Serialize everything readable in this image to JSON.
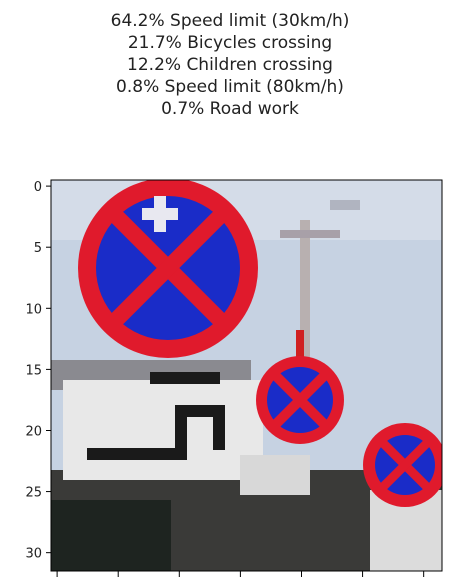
{
  "chart_data": {
    "type": "image",
    "title_lines": [
      "64.2% Speed limit (30km/h)",
      "21.7% Bicycles crossing",
      "12.2% Children crossing",
      "0.8% Speed limit (80km/h)",
      "0.7% Road work"
    ],
    "predictions": [
      {
        "percent": 64.2,
        "label": "Speed limit (30km/h)"
      },
      {
        "percent": 21.7,
        "label": "Bicycles crossing"
      },
      {
        "percent": 12.2,
        "label": "Children crossing"
      },
      {
        "percent": 0.8,
        "label": "Speed limit (80km/h)"
      },
      {
        "percent": 0.7,
        "label": "Road work"
      }
    ],
    "image_size": [
      32,
      32
    ],
    "yticks": [
      0,
      5,
      10,
      15,
      20,
      25,
      30
    ],
    "ytick_labels": [
      "0",
      "5",
      "10",
      "15",
      "20",
      "25",
      "30"
    ],
    "xticks": [
      0,
      5,
      10,
      15,
      20,
      25,
      30
    ],
    "xlim": [
      -0.5,
      31.5
    ],
    "ylim": [
      31.5,
      -0.5
    ],
    "grid": false,
    "colors": {
      "sign_red": "#e01a2c",
      "sign_blue": "#1a2cc8",
      "sky": "#c8d4e4",
      "road_plate": "#e6e6e6"
    }
  }
}
